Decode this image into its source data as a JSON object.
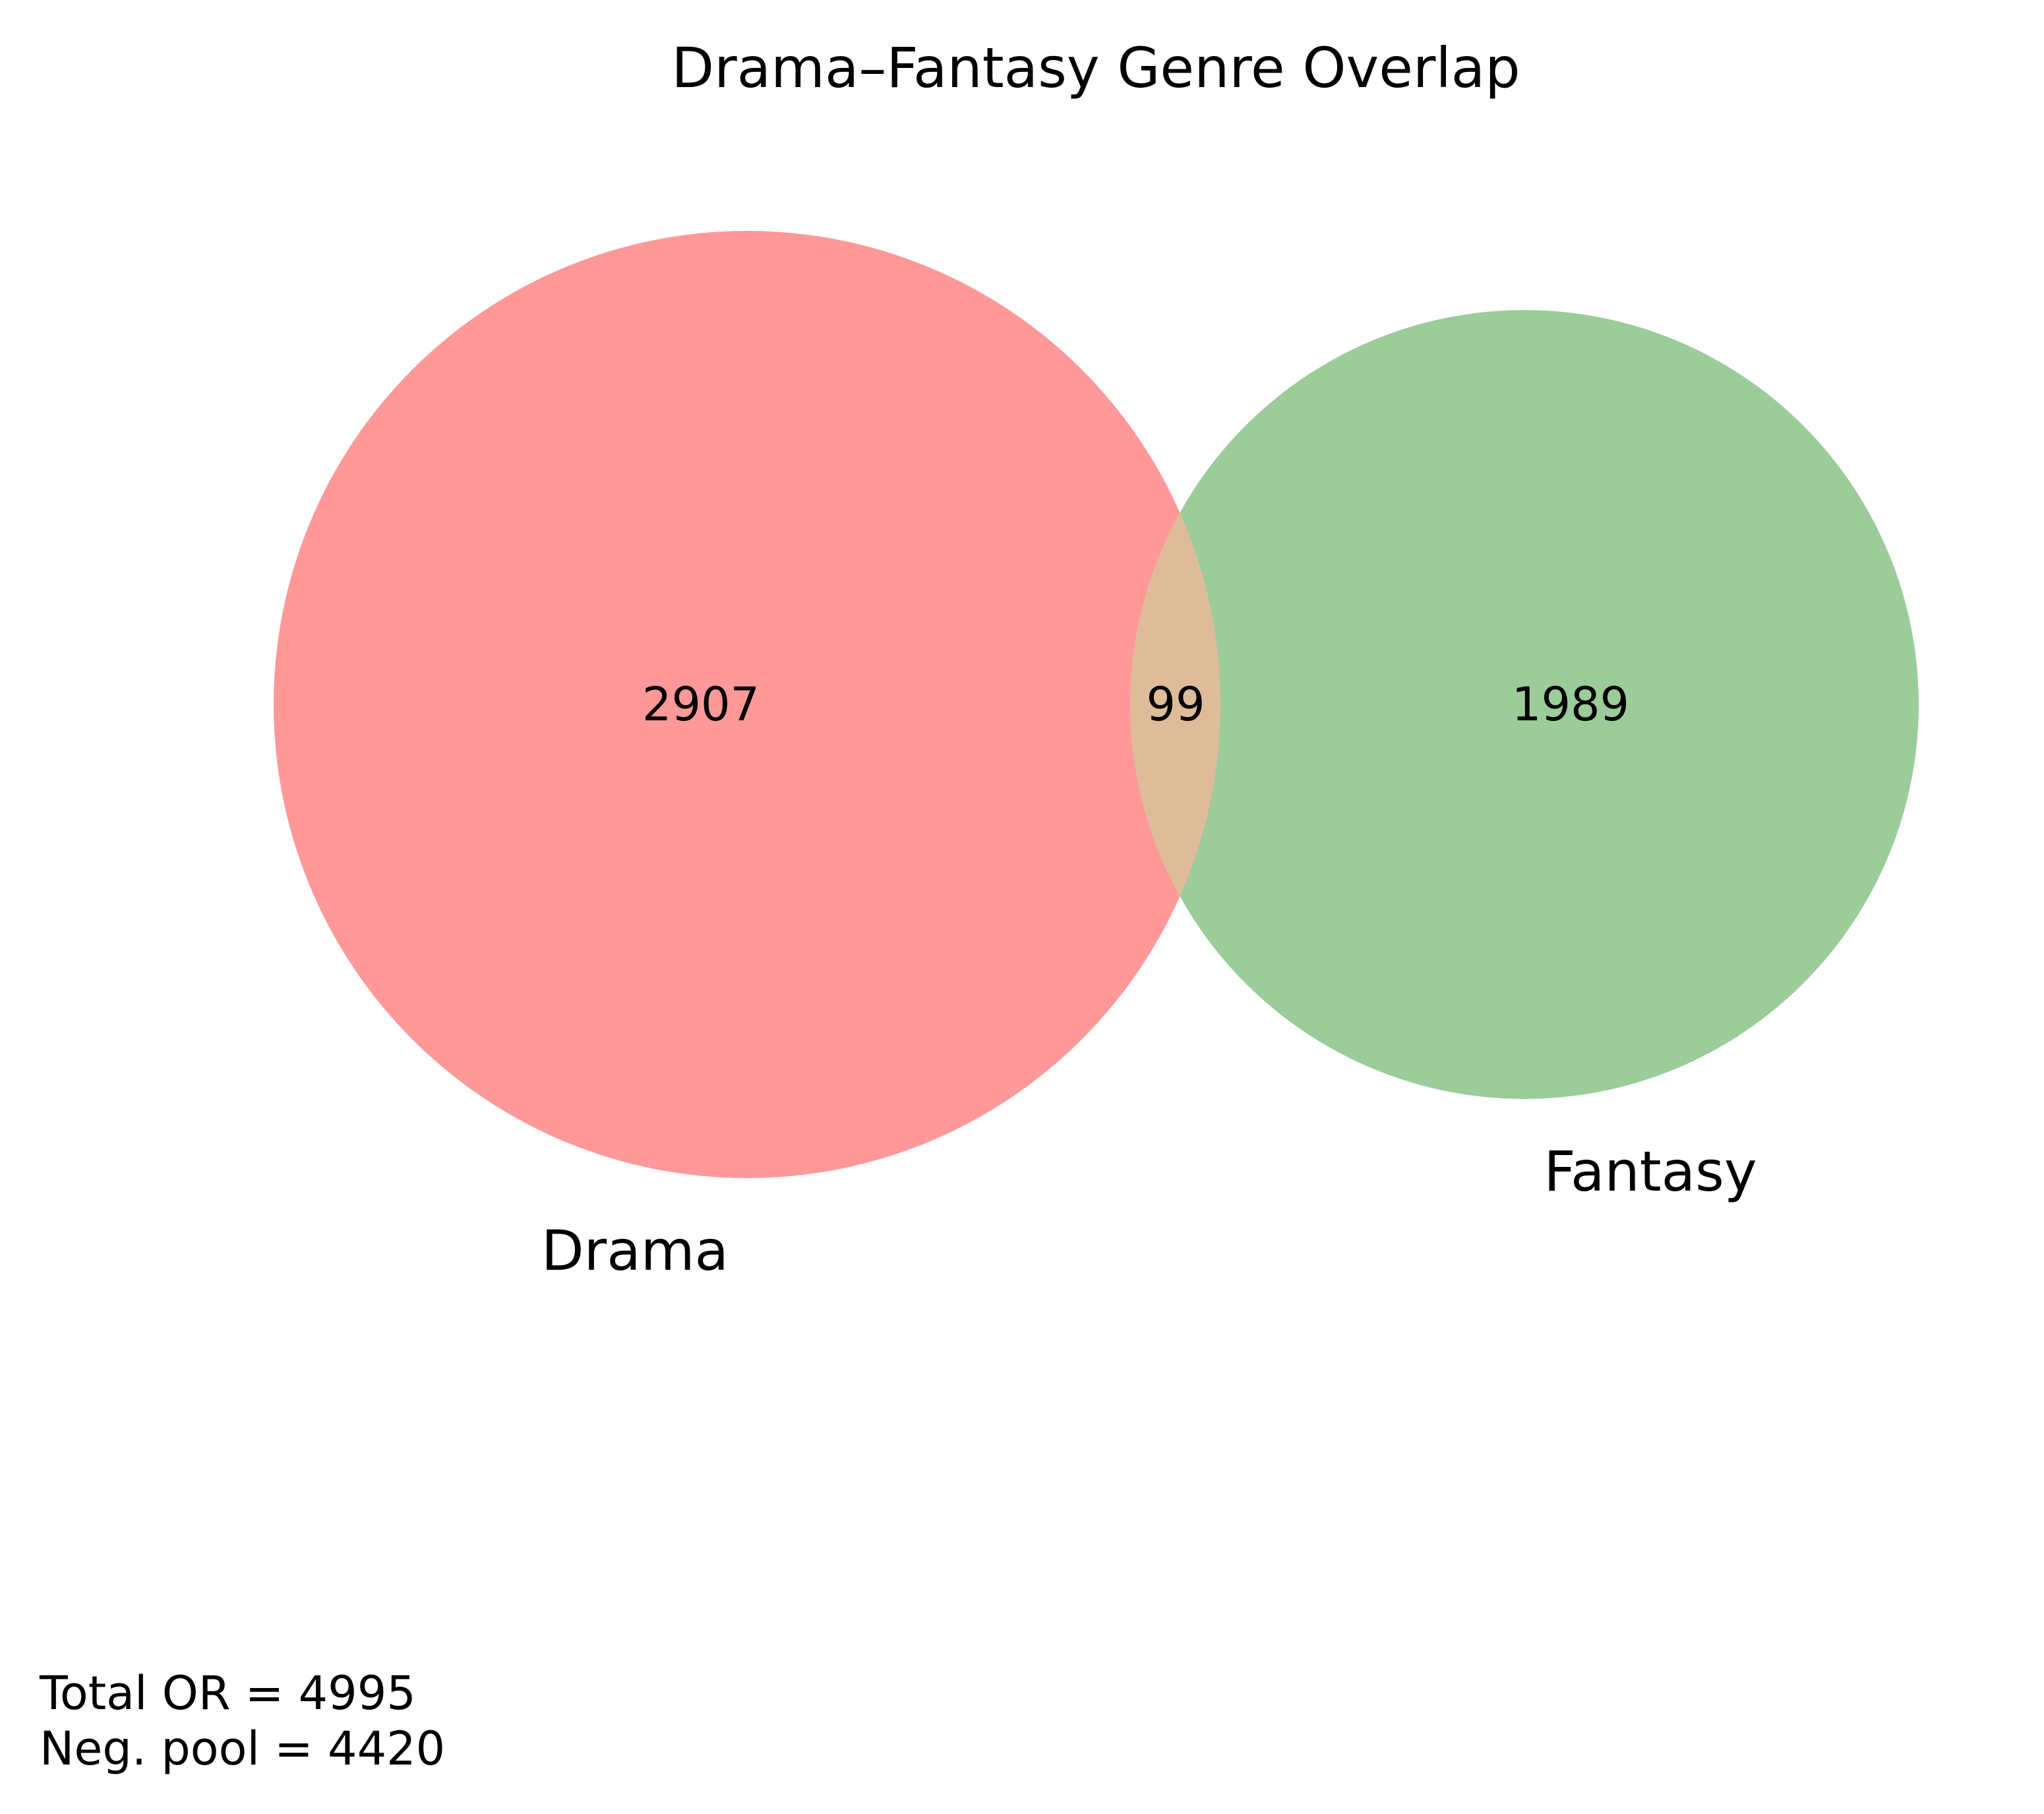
{
  "title": "Drama–Fantasy Genre Overlap",
  "sets": [
    {
      "name": "Drama",
      "only_count": "2907",
      "color": "#ff9999"
    },
    {
      "name": "Fantasy",
      "only_count": "1989",
      "color": "#9bcc99"
    }
  ],
  "intersection": {
    "count": "99",
    "color": "#dfbc99"
  },
  "stats": {
    "total_or": "Total OR = 4995",
    "neg_pool": "Neg. pool = 4420"
  }
}
